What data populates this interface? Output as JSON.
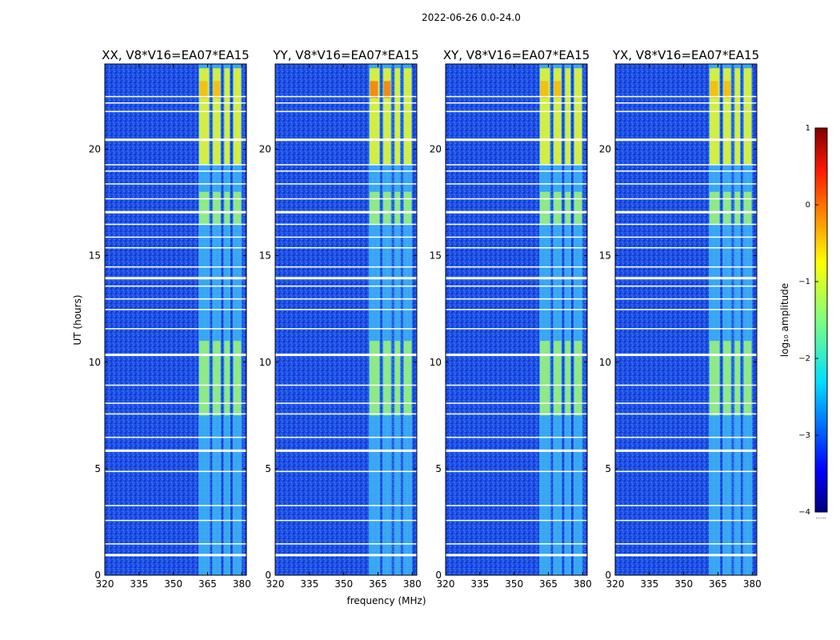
{
  "figure_title": "2022-06-26 0.0-24.0",
  "chart_data": {
    "type": "heatmap",
    "ylabel": "UT (hours)",
    "xlabel": "frequency (MHz)",
    "xlim": [
      320,
      382
    ],
    "ylim": [
      0,
      24
    ],
    "x_ticks": [
      320,
      335,
      350,
      365,
      380
    ],
    "y_ticks": [
      0,
      5,
      10,
      15,
      20
    ],
    "panels": [
      {
        "title": "XX, V8*V16=EA07*EA15"
      },
      {
        "title": "YY, V8*V16=EA07*EA15"
      },
      {
        "title": "XY, V8*V16=EA07*EA15"
      },
      {
        "title": "YX, V8*V16=EA07*EA15"
      }
    ],
    "rfi_band_mhz": [
      [
        361,
        366
      ],
      [
        367,
        371
      ],
      [
        372,
        375
      ],
      [
        376,
        380
      ]
    ],
    "strong_rfi_hours": [
      [
        7.5,
        11
      ],
      [
        16.5,
        18
      ],
      [
        19.3,
        23.8
      ]
    ],
    "flagged_hours": [
      1.0,
      1.5,
      2.6,
      3.3,
      4.9,
      5.9,
      6.5,
      7.6,
      8.1,
      8.95,
      10.4,
      11.6,
      12.5,
      13.0,
      13.6,
      14.0,
      14.5,
      15.4,
      15.9,
      16.5,
      17.1,
      17.7,
      18.4,
      19.0,
      19.3,
      20.5,
      21.8,
      22.2,
      22.5
    ],
    "colorbar": {
      "label": "log₁₀ amplitude",
      "range": [
        -4,
        1
      ],
      "ticks": [
        "1",
        "0",
        "−1",
        "−2",
        "−3",
        "−4"
      ],
      "tick_values": [
        1,
        0,
        -1,
        -2,
        -3,
        -4
      ],
      "colormap": "jet",
      "footnote": "......"
    }
  }
}
